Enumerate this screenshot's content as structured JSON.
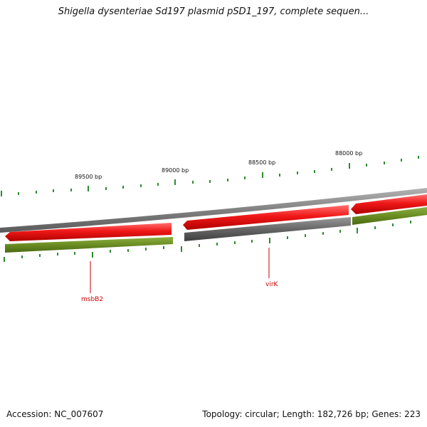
{
  "title": "Shigella dysenteriae Sd197 plasmid pSD1_197, complete sequen...",
  "ticks": [
    "89500 bp",
    "89000 bp",
    "88500 bp",
    "88000 bp"
  ],
  "genes": [
    "msbB2",
    "virK"
  ],
  "footer": {
    "accession": "Accession: NC_007607",
    "topology": "Topology: circular; Length: 182,726 bp; Genes: 223"
  },
  "colors": {
    "backbone": "#808080",
    "cds_forward": "#e31414",
    "cds_other": "#606060",
    "gene_track": "#6a8c22",
    "tick": "#2e8b2e",
    "label": "#cc0000"
  }
}
